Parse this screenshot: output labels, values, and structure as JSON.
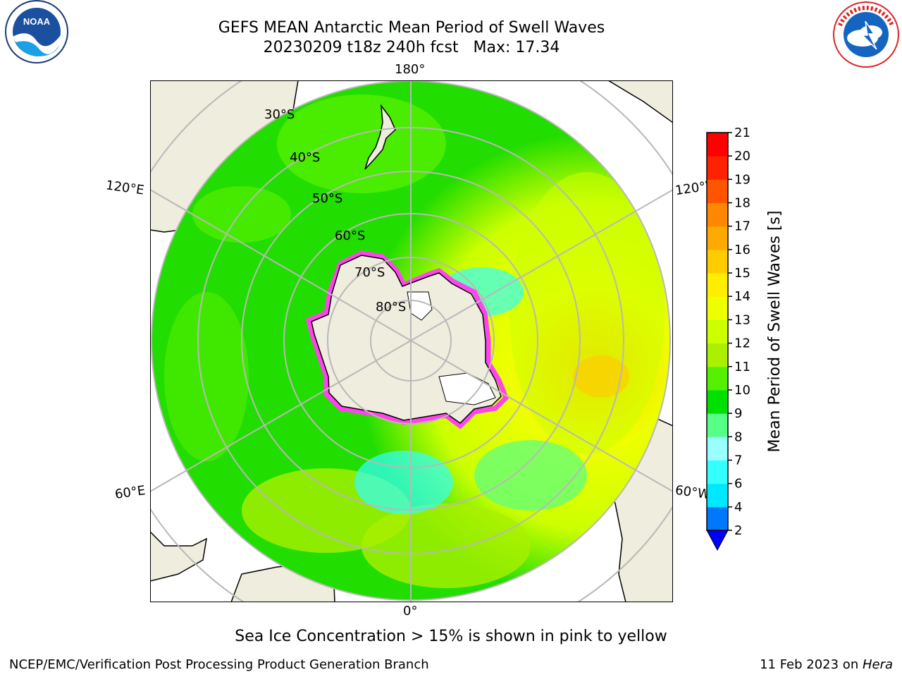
{
  "title": {
    "line1": "GEFS MEAN Antarctic Mean Period of Swell Waves",
    "line2": "20230209 t18z 240h fcst   Max: 17.34"
  },
  "logos": {
    "noaa_text": "NOAA",
    "noaa_ring": "NATIONAL OCEANIC AND ATMOSPHERIC ADMINISTRATION · U.S. DEPARTMENT OF COMMERCE",
    "nws_ring": "NATIONAL WEATHER SERVICE"
  },
  "map": {
    "projection": "south-polar-stereographic",
    "lon_labels": {
      "top": "180°",
      "bottom": "0°",
      "upper_left": "120°E",
      "upper_right": "120°W",
      "lower_left": "60°E",
      "lower_right": "60°W"
    },
    "lat_labels": [
      "30°S",
      "40°S",
      "50°S",
      "60°S",
      "70°S",
      "80°S"
    ],
    "colors": {
      "land": "#efedde",
      "ice": "#ffffff",
      "ice_edge_pink": "#ff44ee",
      "grid": "#b8b8b8",
      "coast": "#000000"
    }
  },
  "colorbar": {
    "label": "Mean Period of Swell Waves [s]",
    "ticks": [
      "2",
      "4",
      "6",
      "7",
      "8",
      "9",
      "10",
      "11",
      "12",
      "13",
      "14",
      "15",
      "16",
      "17",
      "18",
      "19",
      "20",
      "21"
    ],
    "colors": [
      "#0000ff",
      "#0077ff",
      "#00e8ff",
      "#33ffff",
      "#99ffff",
      "#55ff88",
      "#00e000",
      "#55f000",
      "#aaf000",
      "#ccff00",
      "#eeff00",
      "#ffee00",
      "#ffcc00",
      "#ffaa00",
      "#ff8800",
      "#ff5500",
      "#ff2200",
      "#ff0000"
    ],
    "extend": "min"
  },
  "caption": "Sea Ice Concentration > 15% is shown in pink to yellow",
  "footer": {
    "left": "NCEP/EMC/Verification Post Processing Product Generation Branch",
    "right_date": "11 Feb 2023 on ",
    "right_host": "Hera"
  }
}
